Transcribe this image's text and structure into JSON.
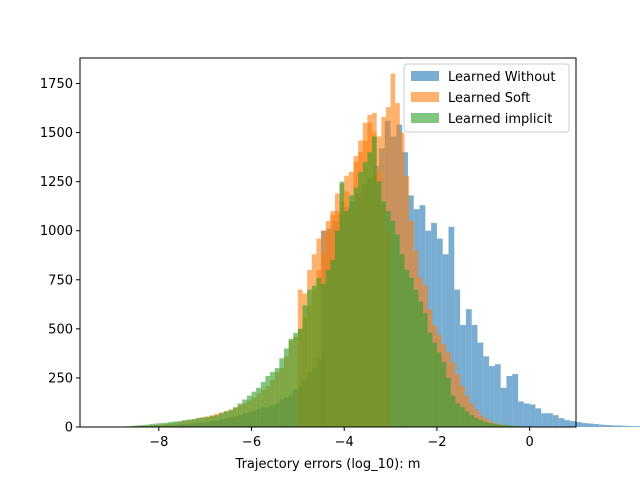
{
  "chart_data": {
    "type": "bar",
    "chart_kind": "overlaid histogram",
    "title": "",
    "xlabel": "Trajectory errors (log_10): m",
    "ylabel": "",
    "xlim": [
      -9.7,
      1.0
    ],
    "ylim": [
      0,
      1880
    ],
    "x_ticks": [
      -8,
      -6,
      -4,
      -2,
      0
    ],
    "x_tick_labels": [
      "−8",
      "−6",
      "−4",
      "−2",
      "0"
    ],
    "y_ticks": [
      0,
      250,
      500,
      750,
      1000,
      1250,
      1500,
      1750
    ],
    "y_tick_labels": [
      "0",
      "250",
      "500",
      "750",
      "1000",
      "1250",
      "1500",
      "1750"
    ],
    "bar_opacity": 0.6,
    "legend_position": "top-right",
    "series": [
      {
        "name": "Learned Without",
        "color": "#1f77b4",
        "x_start": -4.5,
        "bin_width": 0.125,
        "values": [
          1000,
          1010,
          1050,
          1080,
          1120,
          1150,
          1190,
          1240,
          1270,
          1330,
          1420,
          1560,
          1480,
          1540,
          1400,
          1180,
          1110,
          1130,
          1000,
          1040,
          960,
          880,
          1020,
          700,
          520,
          600,
          520,
          430,
          360,
          310,
          320,
          200,
          260,
          270,
          130,
          120,
          115,
          95,
          70,
          70,
          60,
          45,
          35,
          30,
          25,
          20,
          18,
          15,
          12,
          10,
          8,
          8,
          6,
          5,
          4,
          3,
          2,
          2
        ],
        "low_tail": {
          "x_start": -9.2,
          "bin_width": 0.1,
          "values": [
            0,
            0,
            1,
            0,
            1,
            1,
            2,
            2,
            3,
            4,
            5,
            6,
            6,
            8,
            8,
            10,
            12,
            13,
            15,
            18,
            20,
            22,
            25,
            30,
            32,
            38,
            45,
            50,
            55,
            60,
            70,
            75,
            80,
            90,
            100,
            100,
            110,
            120,
            140,
            150,
            160,
            190,
            210,
            240,
            280,
            300,
            350,
            380
          ]
        }
      },
      {
        "name": "Learned Soft",
        "color": "#ff7f0e",
        "x_start": -9.2,
        "bin_width": 0.1,
        "values": [
          0,
          0,
          1,
          1,
          2,
          2,
          3,
          4,
          5,
          6,
          8,
          10,
          12,
          15,
          18,
          22,
          26,
          30,
          35,
          40,
          45,
          50,
          55,
          60,
          68,
          75,
          80,
          90,
          100,
          110,
          120,
          135,
          150,
          170,
          190,
          210,
          240,
          280,
          300,
          360,
          440,
          460,
          500,
          560,
          620,
          700,
          800,
          880,
          1000,
          1080,
          1100,
          1150,
          1200,
          1300,
          1380,
          1460,
          1550,
          1590,
          1600,
          1480,
          1580,
          1630,
          1800,
          1650,
          1500,
          1280,
          1050,
          900,
          760,
          720,
          600,
          520,
          470,
          420,
          380,
          330,
          270,
          210,
          160,
          120,
          90,
          60,
          45,
          30,
          20,
          14,
          10,
          7,
          5,
          3,
          2,
          2,
          1,
          1,
          1,
          0,
          0,
          0
        ],
        "mid_dip": {
          "x_start": -5.0,
          "bin_width": 0.1,
          "values": [
            700,
            680,
            800,
            880,
            960,
            1000,
            1050,
            1100,
            1190,
            1240,
            1280,
            1100,
            1350,
            1400,
            1460,
            1550,
            1500,
            1300,
            1120,
            1000
          ]
        }
      },
      {
        "name": "Learned implicit",
        "color": "#2ca02c",
        "x_start": -9.2,
        "bin_width": 0.1,
        "values": [
          0,
          0,
          1,
          2,
          3,
          4,
          6,
          8,
          10,
          12,
          15,
          18,
          20,
          22,
          25,
          28,
          30,
          35,
          38,
          40,
          45,
          48,
          50,
          55,
          60,
          70,
          80,
          85,
          100,
          120,
          140,
          160,
          180,
          200,
          230,
          260,
          280,
          300,
          350,
          400,
          450,
          480,
          500,
          620,
          700,
          720,
          760,
          730,
          800,
          850,
          1000,
          1250,
          1100,
          1180,
          1220,
          1300,
          1350,
          1400,
          1480,
          1250,
          1150,
          1100,
          1050,
          980,
          880,
          800,
          760,
          700,
          640,
          580,
          480,
          430,
          380,
          330,
          250,
          160,
          120,
          100,
          80,
          60,
          45,
          35,
          25,
          20,
          15,
          12,
          10,
          8,
          6,
          5,
          4,
          3,
          2,
          2,
          1,
          1,
          0,
          0
        ]
      }
    ]
  }
}
